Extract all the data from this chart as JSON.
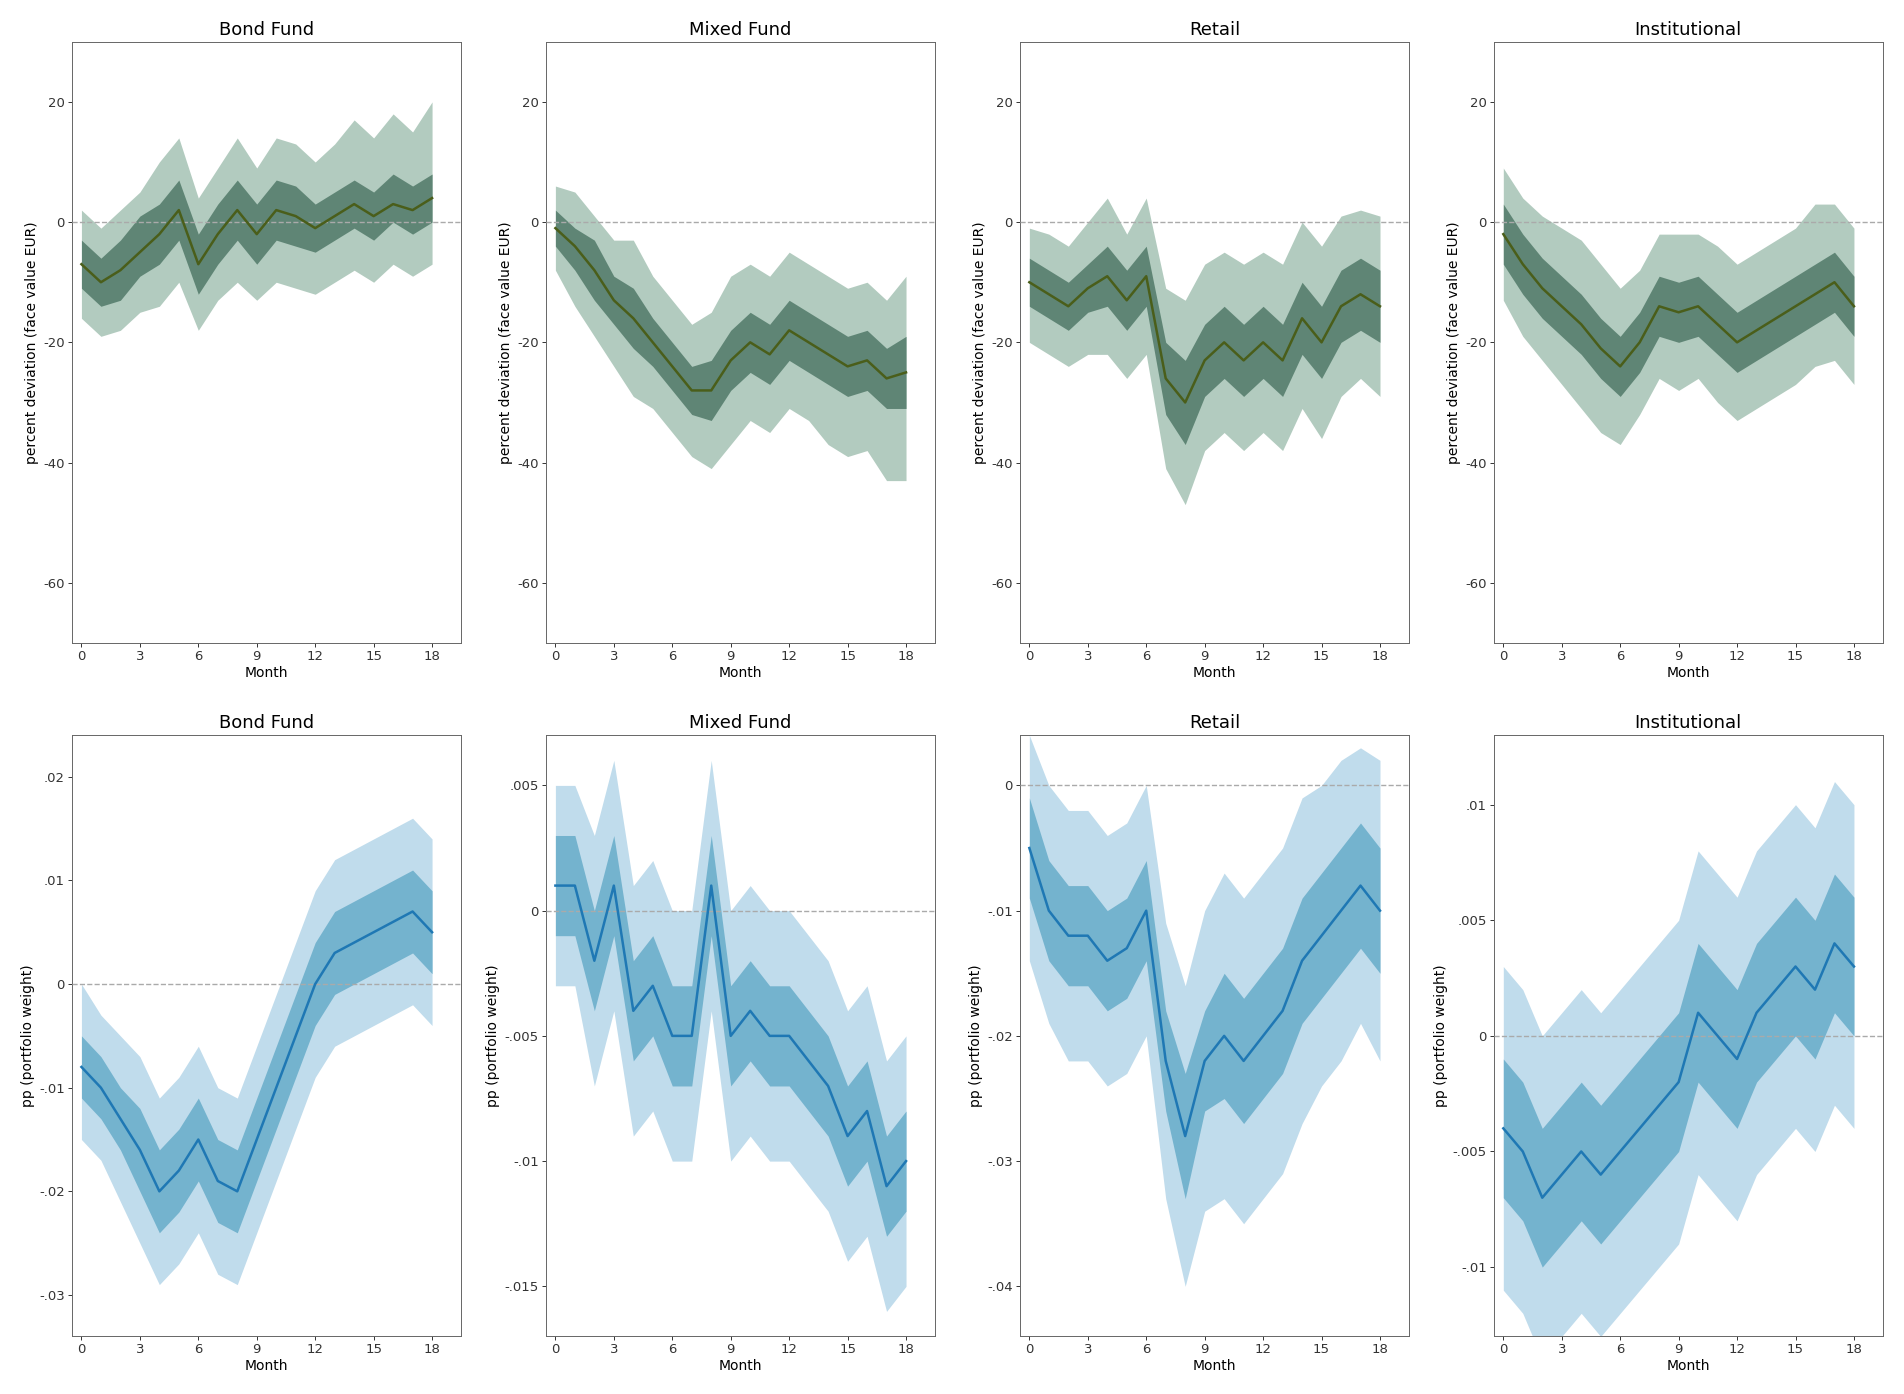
{
  "months": [
    0,
    1,
    2,
    3,
    4,
    5,
    6,
    7,
    8,
    9,
    10,
    11,
    12,
    13,
    14,
    15,
    16,
    17,
    18
  ],
  "row1": {
    "titles": [
      "Bond Fund",
      "Mixed Fund",
      "Retail",
      "Institutional"
    ],
    "ylabel": "percent deviation (face value EUR)",
    "ylim": [
      -70,
      30
    ],
    "yticks": [
      -60,
      -40,
      -20,
      0,
      20
    ],
    "series": [
      {
        "mean": [
          -7,
          -10,
          -8,
          -5,
          -2,
          2,
          -7,
          -2,
          2,
          -2,
          2,
          1,
          -1,
          1,
          3,
          1,
          3,
          2,
          4
        ],
        "ci68_lo": [
          -11,
          -14,
          -13,
          -9,
          -7,
          -3,
          -12,
          -7,
          -3,
          -7,
          -3,
          -4,
          -5,
          -3,
          -1,
          -3,
          0,
          -2,
          0
        ],
        "ci68_hi": [
          -3,
          -6,
          -3,
          1,
          3,
          7,
          -2,
          3,
          7,
          3,
          7,
          6,
          3,
          5,
          7,
          5,
          8,
          6,
          8
        ],
        "ci90_lo": [
          -16,
          -19,
          -18,
          -15,
          -14,
          -10,
          -18,
          -13,
          -10,
          -13,
          -10,
          -11,
          -12,
          -10,
          -8,
          -10,
          -7,
          -9,
          -7
        ],
        "ci90_hi": [
          2,
          -1,
          2,
          5,
          10,
          14,
          4,
          9,
          14,
          9,
          14,
          13,
          10,
          13,
          17,
          14,
          18,
          15,
          20
        ]
      },
      {
        "mean": [
          -1,
          -4,
          -8,
          -13,
          -16,
          -20,
          -24,
          -28,
          -28,
          -23,
          -20,
          -22,
          -18,
          -20,
          -22,
          -24,
          -23,
          -26,
          -25
        ],
        "ci68_lo": [
          -4,
          -8,
          -13,
          -17,
          -21,
          -24,
          -28,
          -32,
          -33,
          -28,
          -25,
          -27,
          -23,
          -25,
          -27,
          -29,
          -28,
          -31,
          -31
        ],
        "ci68_hi": [
          2,
          -1,
          -3,
          -9,
          -11,
          -16,
          -20,
          -24,
          -23,
          -18,
          -15,
          -17,
          -13,
          -15,
          -17,
          -19,
          -18,
          -21,
          -19
        ],
        "ci90_lo": [
          -8,
          -14,
          -19,
          -24,
          -29,
          -31,
          -35,
          -39,
          -41,
          -37,
          -33,
          -35,
          -31,
          -33,
          -37,
          -39,
          -38,
          -43,
          -43
        ],
        "ci90_hi": [
          6,
          5,
          1,
          -3,
          -3,
          -9,
          -13,
          -17,
          -15,
          -9,
          -7,
          -9,
          -5,
          -7,
          -9,
          -11,
          -10,
          -13,
          -9
        ]
      },
      {
        "mean": [
          -10,
          -12,
          -14,
          -11,
          -9,
          -13,
          -9,
          -26,
          -30,
          -23,
          -20,
          -23,
          -20,
          -23,
          -16,
          -20,
          -14,
          -12,
          -14
        ],
        "ci68_lo": [
          -14,
          -16,
          -18,
          -15,
          -14,
          -18,
          -14,
          -32,
          -37,
          -29,
          -26,
          -29,
          -26,
          -29,
          -22,
          -26,
          -20,
          -18,
          -20
        ],
        "ci68_hi": [
          -6,
          -8,
          -10,
          -7,
          -4,
          -8,
          -4,
          -20,
          -23,
          -17,
          -14,
          -17,
          -14,
          -17,
          -10,
          -14,
          -8,
          -6,
          -8
        ],
        "ci90_lo": [
          -20,
          -22,
          -24,
          -22,
          -22,
          -26,
          -22,
          -41,
          -47,
          -38,
          -35,
          -38,
          -35,
          -38,
          -31,
          -36,
          -29,
          -26,
          -29
        ],
        "ci90_hi": [
          -1,
          -2,
          -4,
          0,
          4,
          -2,
          4,
          -11,
          -13,
          -7,
          -5,
          -7,
          -5,
          -7,
          0,
          -4,
          1,
          2,
          1
        ]
      },
      {
        "mean": [
          -2,
          -7,
          -11,
          -14,
          -17,
          -21,
          -24,
          -20,
          -14,
          -15,
          -14,
          -17,
          -20,
          -18,
          -16,
          -14,
          -12,
          -10,
          -14
        ],
        "ci68_lo": [
          -7,
          -12,
          -16,
          -19,
          -22,
          -26,
          -29,
          -25,
          -19,
          -20,
          -19,
          -22,
          -25,
          -23,
          -21,
          -19,
          -17,
          -15,
          -19
        ],
        "ci68_hi": [
          3,
          -2,
          -6,
          -9,
          -12,
          -16,
          -19,
          -15,
          -9,
          -10,
          -9,
          -12,
          -15,
          -13,
          -11,
          -9,
          -7,
          -5,
          -9
        ],
        "ci90_lo": [
          -13,
          -19,
          -23,
          -27,
          -31,
          -35,
          -37,
          -32,
          -26,
          -28,
          -26,
          -30,
          -33,
          -31,
          -29,
          -27,
          -24,
          -23,
          -27
        ],
        "ci90_hi": [
          9,
          4,
          1,
          -1,
          -3,
          -7,
          -11,
          -8,
          -2,
          -2,
          -2,
          -4,
          -7,
          -5,
          -3,
          -1,
          3,
          3,
          -1
        ]
      }
    ]
  },
  "row2": {
    "titles": [
      "Bond Fund",
      "Mixed Fund",
      "Retail",
      "Institutional"
    ],
    "ylabel": "pp (portfolio weight)",
    "panel_ylims": [
      [
        -0.034,
        0.024
      ],
      [
        -0.017,
        0.007
      ],
      [
        -0.044,
        0.004
      ],
      [
        -0.013,
        0.013
      ]
    ],
    "panel_yticks": [
      [
        -0.03,
        -0.02,
        -0.01,
        0.0,
        0.01,
        0.02
      ],
      [
        -0.015,
        -0.01,
        -0.005,
        0.0,
        0.005
      ],
      [
        -0.04,
        -0.03,
        -0.02,
        -0.01,
        0.0
      ],
      [
        -0.01,
        -0.005,
        0.0,
        0.005,
        0.01
      ]
    ],
    "panel_ytick_labels": [
      [
        "-.03",
        "-.02",
        "-.01",
        "0",
        ".01",
        ".02"
      ],
      [
        "-.015",
        "-.01",
        "-.005",
        "0",
        ".005"
      ],
      [
        "-.04",
        "-.03",
        "-.02",
        "-.01",
        "0"
      ],
      [
        "-.01",
        "-.005",
        "0",
        ".005",
        ".01"
      ]
    ],
    "series": [
      {
        "mean": [
          -0.008,
          -0.01,
          -0.013,
          -0.016,
          -0.02,
          -0.018,
          -0.015,
          -0.019,
          -0.02,
          -0.015,
          -0.01,
          -0.005,
          0.0,
          0.003,
          0.004,
          0.005,
          0.006,
          0.007,
          0.005
        ],
        "ci68_lo": [
          -0.011,
          -0.013,
          -0.016,
          -0.02,
          -0.024,
          -0.022,
          -0.019,
          -0.023,
          -0.024,
          -0.019,
          -0.014,
          -0.009,
          -0.004,
          -0.001,
          0.0,
          0.001,
          0.002,
          0.003,
          0.001
        ],
        "ci68_hi": [
          -0.005,
          -0.007,
          -0.01,
          -0.012,
          -0.016,
          -0.014,
          -0.011,
          -0.015,
          -0.016,
          -0.011,
          -0.006,
          -0.001,
          0.004,
          0.007,
          0.008,
          0.009,
          0.01,
          0.011,
          0.009
        ],
        "ci90_lo": [
          -0.015,
          -0.017,
          -0.021,
          -0.025,
          -0.029,
          -0.027,
          -0.024,
          -0.028,
          -0.029,
          -0.024,
          -0.019,
          -0.014,
          -0.009,
          -0.006,
          -0.005,
          -0.004,
          -0.003,
          -0.002,
          -0.004
        ],
        "ci90_hi": [
          0.0,
          -0.003,
          -0.005,
          -0.007,
          -0.011,
          -0.009,
          -0.006,
          -0.01,
          -0.011,
          -0.006,
          -0.001,
          0.004,
          0.009,
          0.012,
          0.013,
          0.014,
          0.015,
          0.016,
          0.014
        ]
      },
      {
        "mean": [
          0.001,
          0.001,
          -0.002,
          0.001,
          -0.004,
          -0.003,
          -0.005,
          -0.005,
          0.001,
          -0.005,
          -0.004,
          -0.005,
          -0.005,
          -0.006,
          -0.007,
          -0.009,
          -0.008,
          -0.011,
          -0.01
        ],
        "ci68_lo": [
          -0.001,
          -0.001,
          -0.004,
          -0.001,
          -0.006,
          -0.005,
          -0.007,
          -0.007,
          -0.001,
          -0.007,
          -0.006,
          -0.007,
          -0.007,
          -0.008,
          -0.009,
          -0.011,
          -0.01,
          -0.013,
          -0.012
        ],
        "ci68_hi": [
          0.003,
          0.003,
          0.0,
          0.003,
          -0.002,
          -0.001,
          -0.003,
          -0.003,
          0.003,
          -0.003,
          -0.002,
          -0.003,
          -0.003,
          -0.004,
          -0.005,
          -0.007,
          -0.006,
          -0.009,
          -0.008
        ],
        "ci90_lo": [
          -0.003,
          -0.003,
          -0.007,
          -0.004,
          -0.009,
          -0.008,
          -0.01,
          -0.01,
          -0.004,
          -0.01,
          -0.009,
          -0.01,
          -0.01,
          -0.011,
          -0.012,
          -0.014,
          -0.013,
          -0.016,
          -0.015
        ],
        "ci90_hi": [
          0.005,
          0.005,
          0.003,
          0.006,
          0.001,
          0.002,
          0.0,
          0.0,
          0.006,
          0.0,
          0.001,
          0.0,
          0.0,
          -0.001,
          -0.002,
          -0.004,
          -0.003,
          -0.006,
          -0.005
        ]
      },
      {
        "mean": [
          -0.005,
          -0.01,
          -0.012,
          -0.012,
          -0.014,
          -0.013,
          -0.01,
          -0.022,
          -0.028,
          -0.022,
          -0.02,
          -0.022,
          -0.02,
          -0.018,
          -0.014,
          -0.012,
          -0.01,
          -0.008,
          -0.01
        ],
        "ci68_lo": [
          -0.009,
          -0.014,
          -0.016,
          -0.016,
          -0.018,
          -0.017,
          -0.014,
          -0.026,
          -0.033,
          -0.026,
          -0.025,
          -0.027,
          -0.025,
          -0.023,
          -0.019,
          -0.017,
          -0.015,
          -0.013,
          -0.015
        ],
        "ci68_hi": [
          -0.001,
          -0.006,
          -0.008,
          -0.008,
          -0.01,
          -0.009,
          -0.006,
          -0.018,
          -0.023,
          -0.018,
          -0.015,
          -0.017,
          -0.015,
          -0.013,
          -0.009,
          -0.007,
          -0.005,
          -0.003,
          -0.005
        ],
        "ci90_lo": [
          -0.014,
          -0.019,
          -0.022,
          -0.022,
          -0.024,
          -0.023,
          -0.02,
          -0.033,
          -0.04,
          -0.034,
          -0.033,
          -0.035,
          -0.033,
          -0.031,
          -0.027,
          -0.024,
          -0.022,
          -0.019,
          -0.022
        ],
        "ci90_hi": [
          0.004,
          0.0,
          -0.002,
          -0.002,
          -0.004,
          -0.003,
          0.0,
          -0.011,
          -0.016,
          -0.01,
          -0.007,
          -0.009,
          -0.007,
          -0.005,
          -0.001,
          0.0,
          0.002,
          0.003,
          0.002
        ]
      },
      {
        "mean": [
          -0.004,
          -0.005,
          -0.007,
          -0.006,
          -0.005,
          -0.006,
          -0.005,
          -0.004,
          -0.003,
          -0.002,
          0.001,
          0.0,
          -0.001,
          0.001,
          0.002,
          0.003,
          0.002,
          0.004,
          0.003
        ],
        "ci68_lo": [
          -0.007,
          -0.008,
          -0.01,
          -0.009,
          -0.008,
          -0.009,
          -0.008,
          -0.007,
          -0.006,
          -0.005,
          -0.002,
          -0.003,
          -0.004,
          -0.002,
          -0.001,
          0.0,
          -0.001,
          0.001,
          0.0
        ],
        "ci68_hi": [
          -0.001,
          -0.002,
          -0.004,
          -0.003,
          -0.002,
          -0.003,
          -0.002,
          -0.001,
          0.0,
          0.001,
          0.004,
          0.003,
          0.002,
          0.004,
          0.005,
          0.006,
          0.005,
          0.007,
          0.006
        ],
        "ci90_lo": [
          -0.011,
          -0.012,
          -0.014,
          -0.013,
          -0.012,
          -0.013,
          -0.012,
          -0.011,
          -0.01,
          -0.009,
          -0.006,
          -0.007,
          -0.008,
          -0.006,
          -0.005,
          -0.004,
          -0.005,
          -0.003,
          -0.004
        ],
        "ci90_hi": [
          0.003,
          0.002,
          0.0,
          0.001,
          0.002,
          0.001,
          0.002,
          0.003,
          0.004,
          0.005,
          0.008,
          0.007,
          0.006,
          0.008,
          0.009,
          0.01,
          0.009,
          0.011,
          0.01
        ]
      }
    ]
  },
  "line_color_green": "#4A5E1A",
  "ci68_color_green": "#5F8575",
  "ci90_color_green": "#B2CBBF",
  "line_color_blue": "#1F78B4",
  "ci68_color_blue": "#74B3CE",
  "ci90_color_blue": "#C0DCEC",
  "dashed_color": "#AAAAAA",
  "xticks": [
    0,
    3,
    6,
    9,
    12,
    15,
    18
  ],
  "xlim": [
    -0.5,
    19.5
  ],
  "background_color": "#FFFFFF",
  "title_fontsize": 13,
  "label_fontsize": 10,
  "tick_fontsize": 9.5
}
